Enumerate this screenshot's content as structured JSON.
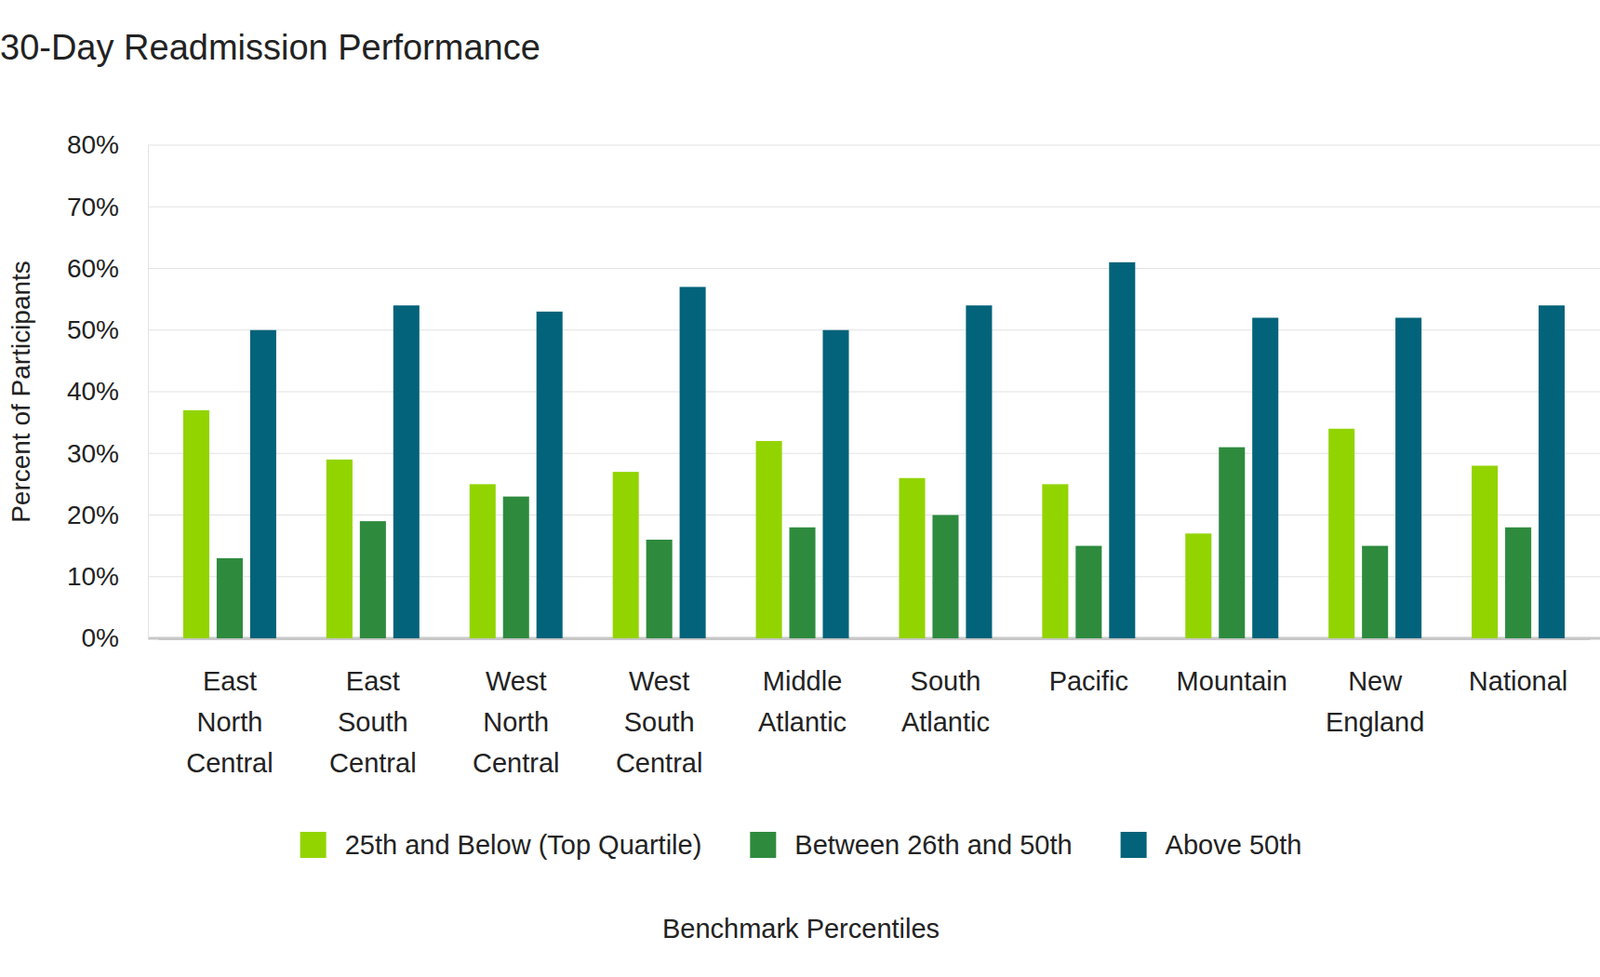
{
  "chart_data": {
    "type": "bar",
    "title": "30-Day Readmission Performance",
    "x_label": "Benchmark Percentiles",
    "y_label": "Percent of Participants",
    "categories": [
      "East North Central",
      "East South Central",
      "West North Central",
      "West South Central",
      "Middle Atlantic",
      "South Atlantic",
      "Pacific",
      "Mountain",
      "New England",
      "National"
    ],
    "series": [
      {
        "name": "25th and Below (Top Quartile)",
        "color": "#92d400",
        "values": [
          37,
          29,
          25,
          27,
          32,
          26,
          25,
          17,
          34,
          28
        ]
      },
      {
        "name": "Between 26th and 50th",
        "color": "#2e8b3e",
        "values": [
          13,
          19,
          23,
          16,
          18,
          20,
          15,
          31,
          15,
          18
        ]
      },
      {
        "name": "Above 50th",
        "color": "#02637a",
        "values": [
          50,
          54,
          53,
          57,
          50,
          54,
          61,
          52,
          52,
          54
        ]
      }
    ],
    "ylim": [
      0,
      80
    ],
    "yticks": [
      {
        "value": 0,
        "label": "0%"
      },
      {
        "value": 10,
        "label": "10%"
      },
      {
        "value": 20,
        "label": "20%"
      },
      {
        "value": 30,
        "label": "30%"
      },
      {
        "value": 40,
        "label": "40%"
      },
      {
        "value": 50,
        "label": "50%"
      },
      {
        "value": 60,
        "label": "60%"
      },
      {
        "value": 70,
        "label": "70%"
      },
      {
        "value": 80,
        "label": "80%"
      }
    ],
    "grid": true,
    "legend": "bottom"
  }
}
